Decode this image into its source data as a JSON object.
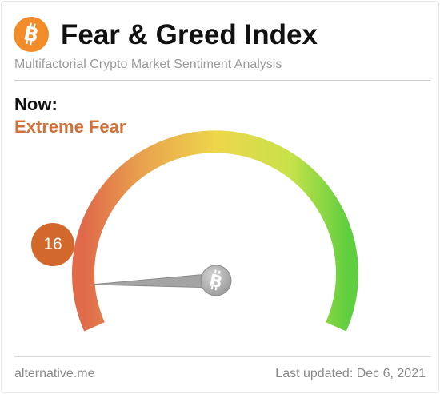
{
  "header": {
    "title": "Fear & Greed Index",
    "subtitle": "Multifactorial Crypto Market Sentiment Analysis",
    "logo_icon": "bitcoin-icon",
    "logo_color": "#f28c28"
  },
  "now": {
    "label": "Now:",
    "classification": "Extreme Fear",
    "value": 16,
    "value_display": "16",
    "accent_color": "#d2703a"
  },
  "gauge": {
    "min": 0,
    "max": 100,
    "pointer_value": 16,
    "hub_icon": "bitcoin-icon",
    "colors": {
      "fear": "#e06a4a",
      "neutral": "#e8d84a",
      "greed": "#5fce3f"
    }
  },
  "footer": {
    "source": "alternative.me",
    "last_updated": "Last updated: Dec 6, 2021"
  }
}
